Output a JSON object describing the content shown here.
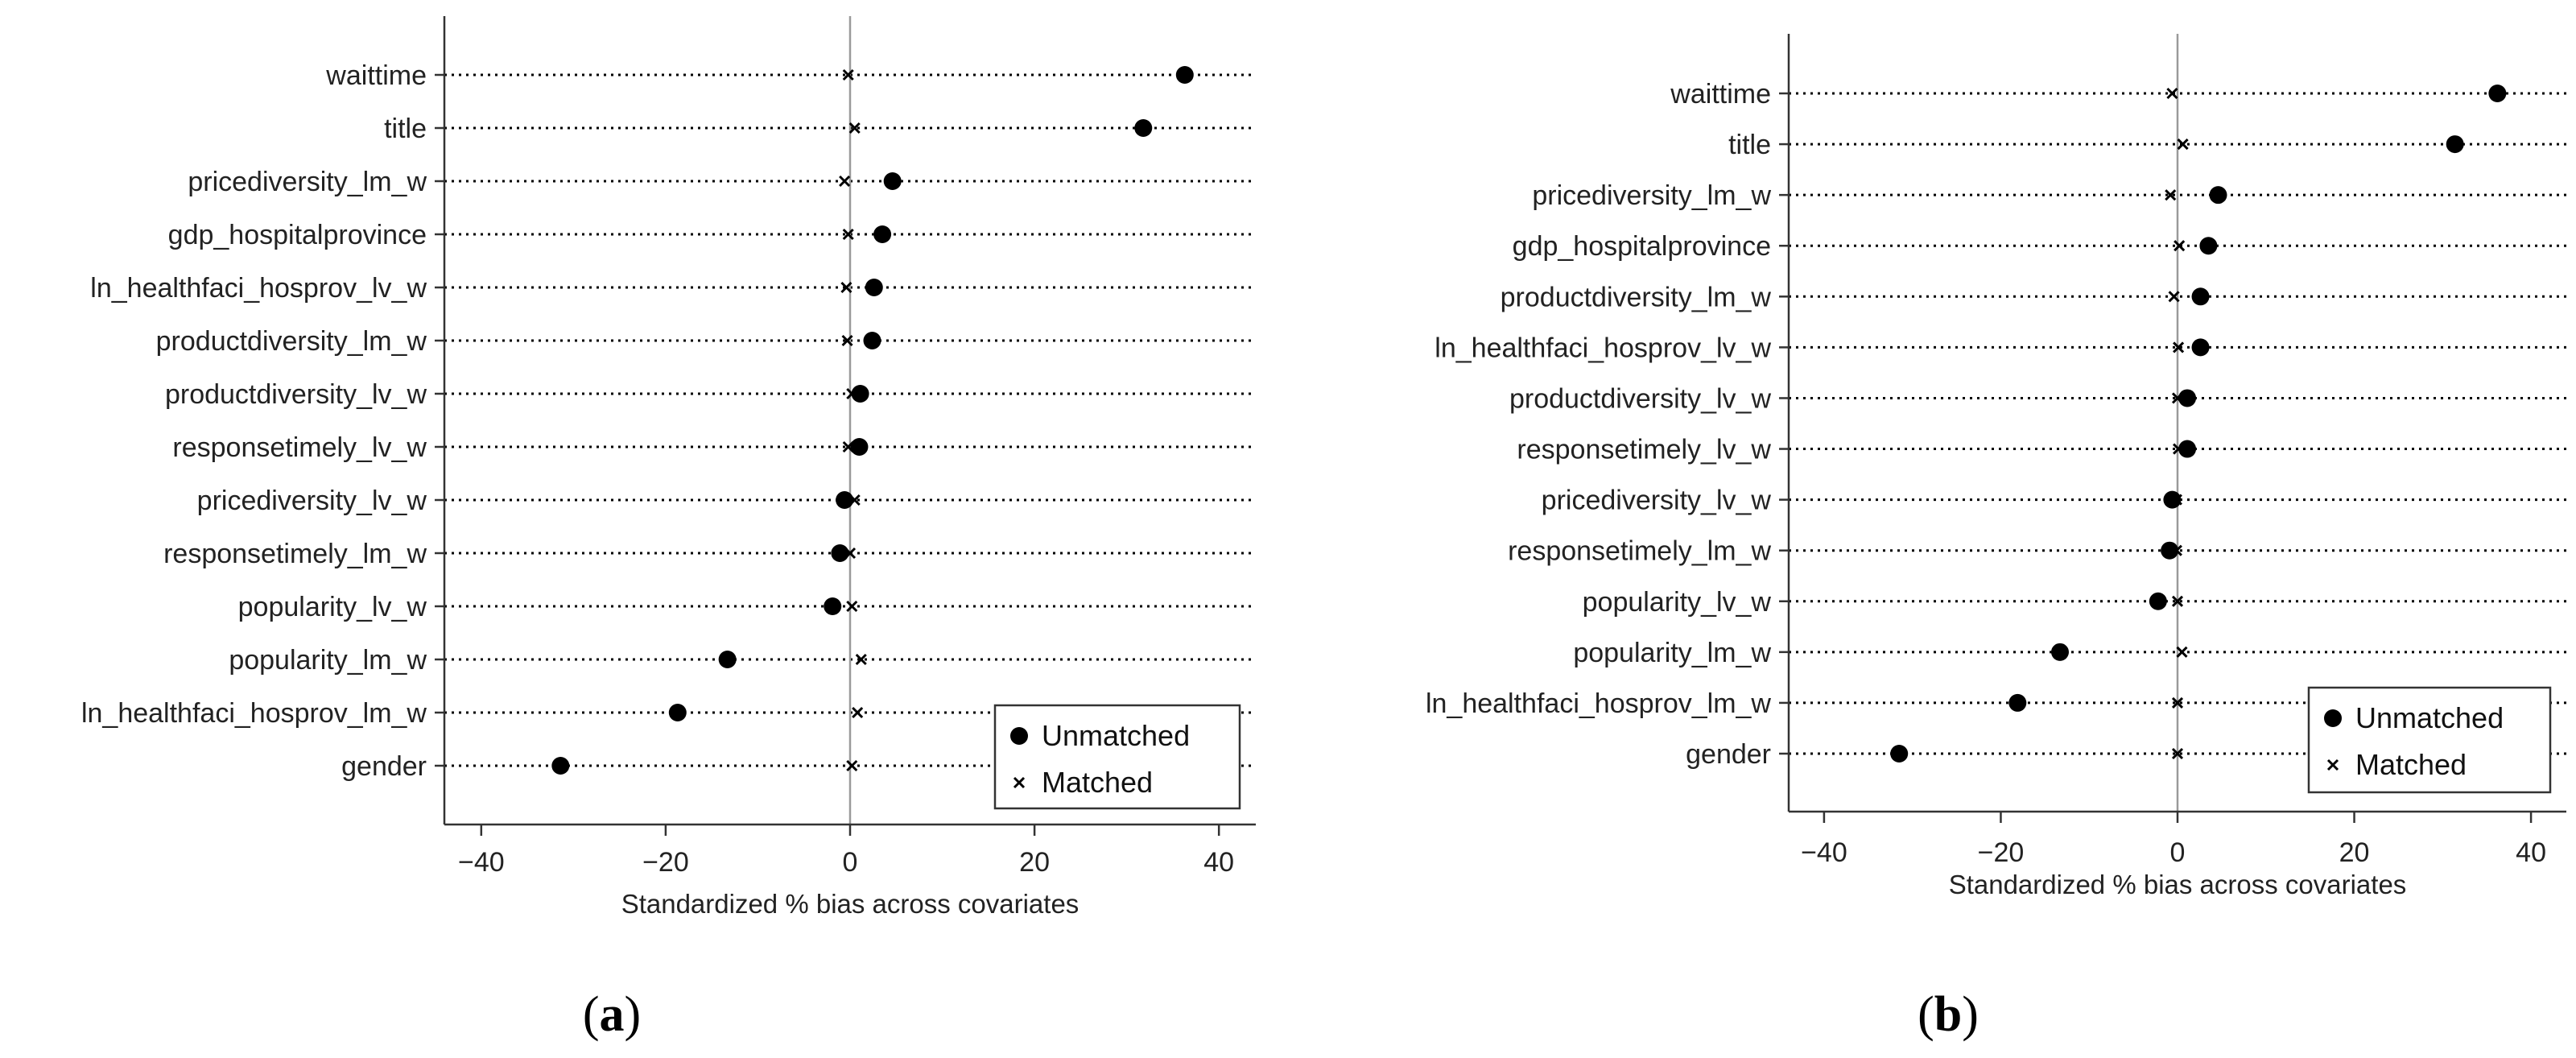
{
  "chart_data": [
    {
      "type": "scatter",
      "panel_label": "a",
      "xlabel": "Standardized % bias across covariates",
      "xlim": [
        -44,
        44
      ],
      "xticks": [
        -40,
        -20,
        0,
        20,
        40
      ],
      "grid": "dotted horizontal lines",
      "legend": {
        "position": "bottom-right",
        "entries": [
          "Unmatched",
          "Matched"
        ]
      },
      "categories": [
        "waittime",
        "title",
        "pricediversity_lm_w",
        "gdp_hospitalprovince",
        "ln_healthfaci_hosprov_lv_w",
        "productdiversity_lm_w",
        "productdiversity_lv_w",
        "responsetimely_lv_w",
        "pricediversity_lv_w",
        "responsetimely_lm_w",
        "popularity_lv_w",
        "popularity_lm_w",
        "ln_healthfaci_hosprov_lm_w",
        "gender"
      ],
      "series": [
        {
          "name": "Unmatched",
          "marker": "dot",
          "values": [
            36.3,
            31.8,
            4.6,
            3.5,
            2.6,
            2.4,
            1.1,
            1.0,
            -0.6,
            -1.1,
            -1.9,
            -13.3,
            -18.7,
            -31.4
          ]
        },
        {
          "name": "Matched",
          "marker": "x",
          "values": [
            -0.2,
            0.5,
            -0.6,
            -0.2,
            -0.4,
            -0.3,
            0.2,
            -0.2,
            0.5,
            0.0,
            0.2,
            1.2,
            0.8,
            0.2
          ]
        }
      ]
    },
    {
      "type": "scatter",
      "panel_label": "b",
      "xlabel": "Standardized % bias across covariates",
      "xlim": [
        -44,
        44
      ],
      "xticks": [
        -40,
        -20,
        0,
        20,
        40
      ],
      "grid": "dotted horizontal lines",
      "legend": {
        "position": "bottom-right",
        "entries": [
          "Unmatched",
          "Matched"
        ]
      },
      "categories": [
        "waittime",
        "title",
        "pricediversity_lm_w",
        "gdp_hospitalprovince",
        "productdiversity_lm_w",
        "ln_healthfaci_hosprov_lv_w",
        "productdiversity_lv_w",
        "responsetimely_lv_w",
        "pricediversity_lv_w",
        "responsetimely_lm_w",
        "popularity_lv_w",
        "popularity_lm_w",
        "ln_healthfaci_hosprov_lm_w",
        "gender"
      ],
      "series": [
        {
          "name": "Unmatched",
          "marker": "dot",
          "values": [
            36.2,
            31.4,
            4.6,
            3.5,
            2.6,
            2.6,
            1.1,
            1.1,
            -0.6,
            -0.9,
            -2.2,
            -13.3,
            -18.1,
            -31.5
          ]
        },
        {
          "name": "Matched",
          "marker": "x",
          "values": [
            -0.6,
            0.6,
            -0.8,
            0.2,
            -0.4,
            0.1,
            0.0,
            0.1,
            -0.1,
            -0.1,
            0.0,
            0.5,
            0.0,
            0.0
          ]
        }
      ]
    }
  ]
}
